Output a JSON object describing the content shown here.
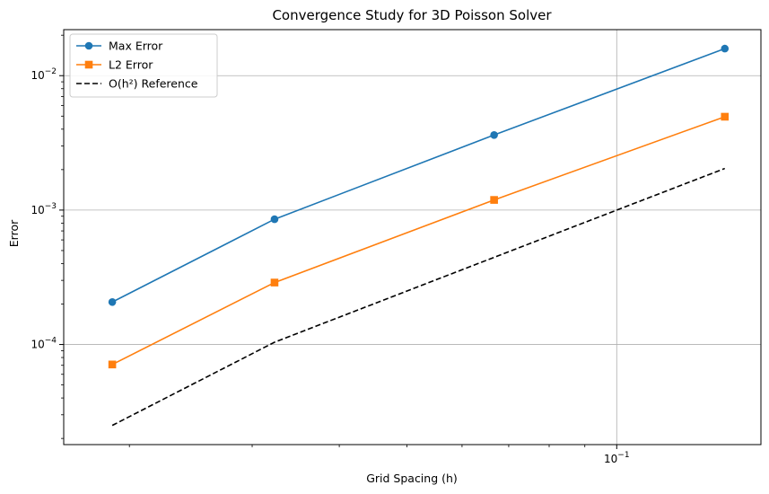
{
  "chart_data": {
    "type": "line",
    "title": "Convergence Study for 3D Poisson Solver",
    "xlabel": "Grid Spacing (h)",
    "ylabel": "Error",
    "xscale": "log",
    "yscale": "log",
    "xlim": [
      0.0161,
      0.161
    ],
    "ylim": [
      1.8e-05,
      0.022
    ],
    "grid": true,
    "legend_position": "upper-left",
    "x_tick_labels": [
      {
        "value": 0.1,
        "base": "10",
        "exp": "−1"
      }
    ],
    "y_tick_labels": [
      {
        "value": 0.0001,
        "base": "10",
        "exp": "−4"
      },
      {
        "value": 0.001,
        "base": "10",
        "exp": "−3"
      },
      {
        "value": 0.01,
        "base": "10",
        "exp": "−2"
      }
    ],
    "x_minor_ticks": [
      0.02,
      0.03,
      0.04,
      0.05,
      0.06,
      0.07,
      0.08,
      0.09
    ],
    "y_minor_ticks": [
      2e-05,
      3e-05,
      4e-05,
      5e-05,
      6e-05,
      7e-05,
      8e-05,
      9e-05,
      0.0002,
      0.0003,
      0.0004,
      0.0005,
      0.0006,
      0.0007,
      0.0008,
      0.0009,
      0.002,
      0.003,
      0.004,
      0.005,
      0.006,
      0.007,
      0.008,
      0.009,
      0.02
    ],
    "series": [
      {
        "name": "Max Error",
        "color": "#1f77b4",
        "marker": "circle",
        "line": "solid",
        "x": [
          0.0189,
          0.0323,
          0.0667,
          0.1429
        ],
        "y": [
          0.000207,
          0.000855,
          0.00362,
          0.0159
        ]
      },
      {
        "name": "L2 Error",
        "color": "#ff7f0e",
        "marker": "square",
        "line": "solid",
        "x": [
          0.0189,
          0.0323,
          0.0667,
          0.1429
        ],
        "y": [
          7.1e-05,
          0.000289,
          0.00119,
          0.00495
        ]
      },
      {
        "name": "O(h²) Reference",
        "color": "#000000",
        "marker": "none",
        "line": "dashed",
        "x": [
          0.0189,
          0.0323,
          0.0667,
          0.1429
        ],
        "y": [
          2.5e-05,
          0.000104,
          0.000445,
          0.00204
        ]
      }
    ]
  }
}
